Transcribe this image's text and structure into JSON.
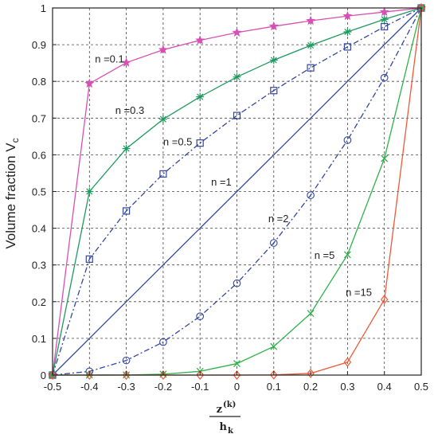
{
  "chart_data": {
    "type": "line",
    "ylabel": "Volume fraction V",
    "ylabel_sub": "c",
    "xlabel_num": "z",
    "xlabel_sup": "(k)",
    "xlabel_den": "h",
    "xlabel_den_sub": "k",
    "xlim": [
      -0.5,
      0.5
    ],
    "ylim": [
      0,
      1
    ],
    "grid": true,
    "x": [
      -0.5,
      -0.4,
      -0.3,
      -0.2,
      -0.1,
      0,
      0.1,
      0.2,
      0.3,
      0.4,
      0.5
    ],
    "xticks": [
      "-0.5",
      "-0.4",
      "-0.3",
      "-0.2",
      "-0.1",
      "0",
      "0.1",
      "0.2",
      "0.3",
      "0.4",
      "0.5"
    ],
    "yticks": [
      "0",
      "0.1",
      "0.2",
      "0.3",
      "0.4",
      "0.5",
      "0.6",
      "0.7",
      "0.8",
      "0.9",
      "1"
    ],
    "series": [
      {
        "label": "n =0.1",
        "color": "#d94fb5",
        "marker": "star",
        "dash": "solid",
        "values": [
          0,
          0.794,
          0.851,
          0.886,
          0.912,
          0.933,
          0.95,
          0.965,
          0.978,
          0.989,
          1
        ]
      },
      {
        "label": "n =0.3",
        "color": "#1f9a5e",
        "marker": "asterisk",
        "dash": "solid",
        "values": [
          0,
          0.5,
          0.617,
          0.697,
          0.758,
          0.812,
          0.858,
          0.898,
          0.935,
          0.969,
          1
        ]
      },
      {
        "label": "n =0.5",
        "color": "#3346a0",
        "marker": "square",
        "dash": "dashdot",
        "values": [
          0,
          0.316,
          0.447,
          0.548,
          0.632,
          0.707,
          0.775,
          0.837,
          0.894,
          0.949,
          1
        ]
      },
      {
        "label": "n =1",
        "color": "#3346a0",
        "marker": "none",
        "dash": "solid",
        "values": [
          0,
          0.1,
          0.2,
          0.3,
          0.4,
          0.5,
          0.6,
          0.7,
          0.8,
          0.9,
          1
        ]
      },
      {
        "label": "n =2",
        "color": "#3346a0",
        "marker": "circle",
        "dash": "dashdot",
        "values": [
          0,
          0.01,
          0.04,
          0.09,
          0.16,
          0.25,
          0.36,
          0.49,
          0.64,
          0.81,
          1
        ]
      },
      {
        "label": "n =5",
        "color": "#2db34a",
        "marker": "x",
        "dash": "solid",
        "values": [
          0,
          0.0,
          0.0003,
          0.0024,
          0.0102,
          0.0313,
          0.0778,
          0.168,
          0.328,
          0.59,
          1
        ]
      },
      {
        "label": "n =15",
        "color": "#ee5a38",
        "marker": "diamond",
        "dash": "solid",
        "values": [
          0,
          0,
          0,
          0,
          0,
          3e-05,
          0.0005,
          0.0047,
          0.0352,
          0.2059,
          1
        ]
      }
    ],
    "annotations": [
      {
        "text": "n =0.1",
        "x": -0.385,
        "y": 0.86
      },
      {
        "text": "n =0.3",
        "x": -0.33,
        "y": 0.72
      },
      {
        "text": "n =0.5",
        "x": -0.2,
        "y": 0.635
      },
      {
        "text": "n =1",
        "x": -0.07,
        "y": 0.525
      },
      {
        "text": "n =2",
        "x": 0.085,
        "y": 0.425
      },
      {
        "text": "n =5",
        "x": 0.21,
        "y": 0.325
      },
      {
        "text": "n =15",
        "x": 0.295,
        "y": 0.225
      }
    ]
  }
}
